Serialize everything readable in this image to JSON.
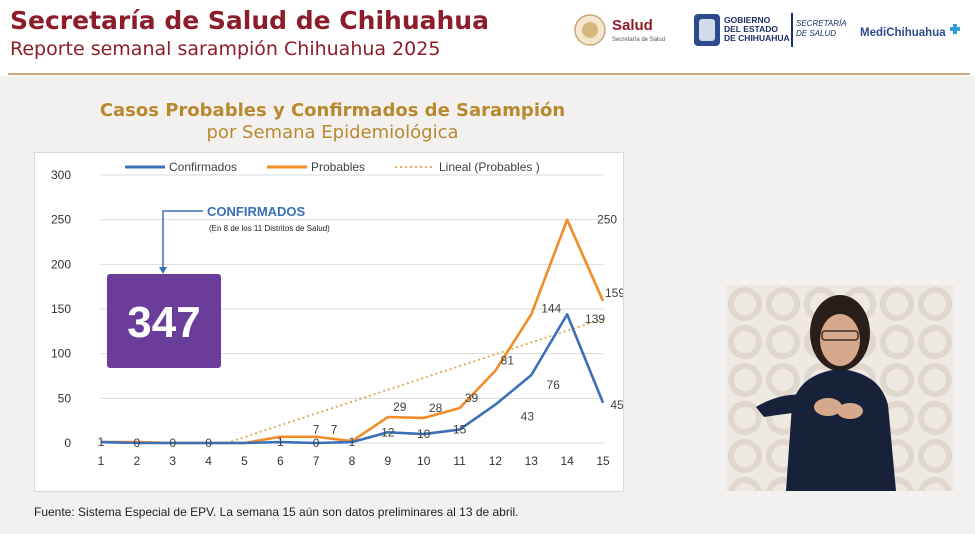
{
  "header": {
    "title": "Secretaría de Salud de Chihuahua",
    "subtitle": "Reporte semanal sarampión Chihuahua 2025",
    "logos": {
      "salud": "Salud",
      "salud_sub": "Secretaría de Salud",
      "gobierno": "GOBIERNO DEL ESTADO DE CHIHUAHUA",
      "secretaria": "SECRETARÍA DE SALUD",
      "medi": "MediChihuahua"
    }
  },
  "chart_data": {
    "type": "line",
    "title": "Casos Probables y Confirmados de Sarampión",
    "subtitle": "por Semana Epidemiológica",
    "xlabel": "",
    "ylabel": "",
    "ylim": [
      0,
      300
    ],
    "yticks": [
      0,
      50,
      100,
      150,
      200,
      250,
      300
    ],
    "x": [
      1,
      2,
      3,
      4,
      5,
      6,
      7,
      8,
      9,
      10,
      11,
      12,
      13,
      14,
      15
    ],
    "grid": true,
    "legend_position": "top",
    "series": [
      {
        "name": "Confirmados",
        "color": "#3b6fb6",
        "values": [
          1,
          0,
          0,
          0,
          0,
          1,
          0,
          1,
          12,
          10,
          15,
          43,
          76,
          144,
          45
        ]
      },
      {
        "name": "Probables",
        "color": "#f28c28",
        "values": [
          1,
          1,
          0,
          0,
          0,
          7,
          7,
          2,
          29,
          28,
          39,
          81,
          144,
          250,
          159
        ]
      },
      {
        "name": "Lineal (Probables )",
        "color": "#e7a34e",
        "style": "dotted",
        "trend_from": [
          4.5,
          0
        ],
        "trend_to": [
          15,
          139
        ]
      }
    ],
    "data_labels": [
      {
        "x": 1,
        "text": "1"
      },
      {
        "x": 2,
        "text": "0"
      },
      {
        "x": 3,
        "text": "0"
      },
      {
        "x": 4,
        "text": "0"
      },
      {
        "x": 6,
        "text": "1"
      },
      {
        "x": 7,
        "text": "0"
      },
      {
        "x": 7,
        "text": "7"
      },
      {
        "x": 7.5,
        "text": "7"
      },
      {
        "x": 8,
        "text": "1"
      },
      {
        "x": 9,
        "text": "12"
      },
      {
        "x": 9.5,
        "text": "29"
      },
      {
        "x": 10,
        "text": "10"
      },
      {
        "x": 10.5,
        "text": "28"
      },
      {
        "x": 11,
        "text": "15"
      },
      {
        "x": 11.5,
        "text": "39"
      },
      {
        "x": 12.5,
        "text": "43"
      },
      {
        "x": 12.5,
        "text": "81"
      },
      {
        "x": 13.5,
        "text": "76"
      },
      {
        "x": 13.5,
        "text": "144"
      },
      {
        "x": 14.5,
        "text": "139"
      },
      {
        "x": 14.5,
        "text": "250"
      },
      {
        "x": 15,
        "text": "159"
      },
      {
        "x": 15,
        "text": "45"
      }
    ],
    "annotation": {
      "label": "CONFIRMADOS",
      "note": "(En 8 de los 11 Distritos de Salud)",
      "total": "347",
      "total_color": "#6a3d9a"
    }
  },
  "footer": {
    "source": "Fuente: Sistema Especial de EPV. La semana 15 aún son datos preliminares al 13 de abril."
  }
}
